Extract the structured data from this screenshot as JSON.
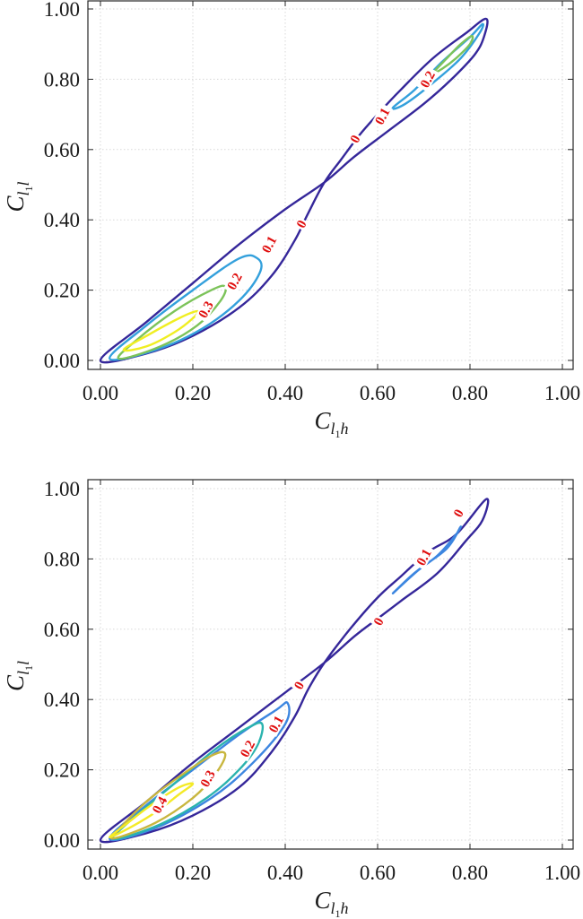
{
  "chart_data": [
    {
      "type": "contour",
      "title": "",
      "xlabel": "C_{l_1 h}",
      "ylabel": "C_{l_1 l}",
      "xlabel_parts": {
        "main": "C",
        "sub1": "l",
        "sub2": "1",
        "tail": "h"
      },
      "ylabel_parts": {
        "main": "C",
        "sub1": "l",
        "sub2": "1",
        "tail": "l"
      },
      "xlim": [
        0,
        1
      ],
      "ylim": [
        0,
        1
      ],
      "xticks": [
        "0.00",
        "0.20",
        "0.40",
        "0.60",
        "0.80",
        "1.00"
      ],
      "yticks": [
        "0.00",
        "0.20",
        "0.40",
        "0.60",
        "0.80",
        "1.00"
      ],
      "grid": true,
      "series": [
        {
          "name": "0",
          "level": 0,
          "color": "#35279a",
          "points": [
            [
              0,
              0
            ],
            [
              0.1,
              0.02
            ],
            [
              0.2,
              0.07
            ],
            [
              0.3,
              0.15
            ],
            [
              0.37,
              0.24
            ],
            [
              0.42,
              0.34
            ],
            [
              0.45,
              0.42
            ],
            [
              0.485,
              0.507
            ],
            [
              0.52,
              0.57
            ],
            [
              0.56,
              0.64
            ],
            [
              0.6,
              0.7
            ],
            [
              0.65,
              0.77
            ],
            [
              0.72,
              0.86
            ],
            [
              0.79,
              0.93
            ],
            [
              0.835,
              0.972
            ],
            [
              0.83,
              0.92
            ],
            [
              0.81,
              0.87
            ],
            [
              0.76,
              0.8
            ],
            [
              0.7,
              0.73
            ],
            [
              0.62,
              0.65
            ],
            [
              0.55,
              0.58
            ],
            [
              0.485,
              0.507
            ],
            [
              0.4,
              0.43
            ],
            [
              0.3,
              0.33
            ],
            [
              0.2,
              0.22
            ],
            [
              0.1,
              0.11
            ],
            [
              0,
              0
            ]
          ]
        },
        {
          "name": "0.1",
          "level": 0.1,
          "color": "#33a0dc",
          "loops": [
            [
              [
                0.02,
                0.005
              ],
              [
                0.12,
                0.03
              ],
              [
                0.22,
                0.09
              ],
              [
                0.3,
                0.17
              ],
              [
                0.345,
                0.25
              ],
              [
                0.34,
                0.29
              ],
              [
                0.3,
                0.29
              ],
              [
                0.2,
                0.2
              ],
              [
                0.1,
                0.1
              ],
              [
                0.02,
                0.005
              ]
            ],
            [
              [
                0.633,
                0.719
              ],
              [
                0.68,
                0.77
              ],
              [
                0.74,
                0.85
              ],
              [
                0.8,
                0.92
              ],
              [
                0.827,
                0.957
              ],
              [
                0.82,
                0.93
              ],
              [
                0.78,
                0.86
              ],
              [
                0.72,
                0.79
              ],
              [
                0.66,
                0.73
              ],
              [
                0.633,
                0.719
              ]
            ]
          ]
        },
        {
          "name": "0.2",
          "level": 0.2,
          "color": "#7cc35a",
          "loops": [
            [
              [
                0.04,
                0.005
              ],
              [
                0.13,
                0.04
              ],
              [
                0.21,
                0.1
              ],
              [
                0.26,
                0.17
              ],
              [
                0.27,
                0.21
              ],
              [
                0.24,
                0.2
              ],
              [
                0.16,
                0.14
              ],
              [
                0.08,
                0.06
              ],
              [
                0.04,
                0.005
              ]
            ],
            [
              [
                0.722,
                0.82
              ],
              [
                0.75,
                0.86
              ],
              [
                0.78,
                0.9
              ],
              [
                0.804,
                0.923
              ],
              [
                0.8,
                0.9
              ],
              [
                0.77,
                0.86
              ],
              [
                0.74,
                0.83
              ],
              [
                0.722,
                0.82
              ]
            ]
          ]
        },
        {
          "name": "0.3",
          "level": 0.3,
          "color": "#f0ee22",
          "loops": [
            [
              [
                0.05,
                0.03
              ],
              [
                0.1,
                0.04
              ],
              [
                0.16,
                0.08
              ],
              [
                0.2,
                0.12
              ],
              [
                0.21,
                0.14
              ],
              [
                0.17,
                0.12
              ],
              [
                0.1,
                0.07
              ],
              [
                0.05,
                0.03
              ]
            ]
          ]
        }
      ],
      "labels": [
        {
          "text": "0",
          "x": 0.435,
          "y": 0.388
        },
        {
          "text": "0",
          "x": 0.551,
          "y": 0.63
        },
        {
          "text": "0.1",
          "x": 0.365,
          "y": 0.33
        },
        {
          "text": "0.1",
          "x": 0.61,
          "y": 0.695
        },
        {
          "text": "0.2",
          "x": 0.29,
          "y": 0.225
        },
        {
          "text": "0.2",
          "x": 0.708,
          "y": 0.8
        },
        {
          "text": "0.3",
          "x": 0.228,
          "y": 0.145
        }
      ]
    },
    {
      "type": "contour",
      "title": "",
      "xlabel": "C_{l_1 h}",
      "ylabel": "C_{l_1 l}",
      "xlabel_parts": {
        "main": "C",
        "sub1": "l",
        "sub2": "1",
        "tail": "h"
      },
      "ylabel_parts": {
        "main": "C",
        "sub1": "l",
        "sub2": "1",
        "tail": "l"
      },
      "xlim": [
        0,
        1
      ],
      "ylim": [
        0,
        1
      ],
      "xticks": [
        "0.00",
        "0.20",
        "0.40",
        "0.60",
        "0.80",
        "1.00"
      ],
      "yticks": [
        "0.00",
        "0.20",
        "0.40",
        "0.60",
        "0.80",
        "1.00"
      ],
      "grid": true,
      "series": [
        {
          "name": "0",
          "level": 0,
          "color": "#35279a",
          "points": [
            [
              0,
              0
            ],
            [
              0.1,
              0.02
            ],
            [
              0.2,
              0.07
            ],
            [
              0.3,
              0.15
            ],
            [
              0.37,
              0.25
            ],
            [
              0.42,
              0.35
            ],
            [
              0.45,
              0.43
            ],
            [
              0.485,
              0.505
            ],
            [
              0.54,
              0.6
            ],
            [
              0.6,
              0.69
            ],
            [
              0.65,
              0.75
            ],
            [
              0.71,
              0.82
            ],
            [
              0.77,
              0.87
            ],
            [
              0.835,
              0.97
            ],
            [
              0.827,
              0.91
            ],
            [
              0.79,
              0.85
            ],
            [
              0.73,
              0.76
            ],
            [
              0.65,
              0.68
            ],
            [
              0.6,
              0.63
            ],
            [
              0.55,
              0.58
            ],
            [
              0.485,
              0.505
            ],
            [
              0.4,
              0.42
            ],
            [
              0.3,
              0.32
            ],
            [
              0.2,
              0.22
            ],
            [
              0.1,
              0.11
            ],
            [
              0,
              0
            ]
          ]
        },
        {
          "name": "0.1",
          "level": 0.1,
          "color": "#3c86e0",
          "loops": [
            [
              [
                0.02,
                0.003
              ],
              [
                0.12,
                0.035
              ],
              [
                0.24,
                0.12
              ],
              [
                0.33,
                0.22
              ],
              [
                0.4,
                0.33
              ],
              [
                0.405,
                0.39
              ],
              [
                0.38,
                0.37
              ],
              [
                0.3,
                0.3
              ],
              [
                0.2,
                0.2
              ],
              [
                0.1,
                0.1
              ],
              [
                0.02,
                0.003
              ]
            ],
            [
              [
                0.633,
                0.702
              ],
              [
                0.69,
                0.77
              ],
              [
                0.75,
                0.83
              ],
              [
                0.779,
                0.89
              ],
              [
                0.77,
                0.87
              ],
              [
                0.73,
                0.81
              ],
              [
                0.68,
                0.76
              ],
              [
                0.633,
                0.702
              ]
            ]
          ]
        },
        {
          "name": "0.2",
          "level": 0.2,
          "color": "#2ab3ae",
          "loops": [
            [
              [
                0.03,
                0.003
              ],
              [
                0.13,
                0.045
              ],
              [
                0.23,
                0.12
              ],
              [
                0.3,
                0.2
              ],
              [
                0.34,
                0.27
              ],
              [
                0.35,
                0.33
              ],
              [
                0.32,
                0.32
              ],
              [
                0.25,
                0.26
              ],
              [
                0.15,
                0.15
              ],
              [
                0.06,
                0.05
              ],
              [
                0.03,
                0.003
              ]
            ]
          ]
        },
        {
          "name": "0.3",
          "level": 0.3,
          "color": "#c8b63e",
          "loops": [
            [
              [
                0.03,
                0.005
              ],
              [
                0.12,
                0.05
              ],
              [
                0.2,
                0.12
              ],
              [
                0.25,
                0.19
              ],
              [
                0.27,
                0.245
              ],
              [
                0.24,
                0.24
              ],
              [
                0.17,
                0.18
              ],
              [
                0.1,
                0.11
              ],
              [
                0.04,
                0.03
              ],
              [
                0.03,
                0.005
              ]
            ]
          ]
        },
        {
          "name": "0.4",
          "level": 0.4,
          "color": "#f4ea26",
          "loops": [
            [
              [
                0.02,
                0.008
              ],
              [
                0.07,
                0.04
              ],
              [
                0.12,
                0.08
              ],
              [
                0.17,
                0.13
              ],
              [
                0.2,
                0.16
              ],
              [
                0.17,
                0.15
              ],
              [
                0.11,
                0.1
              ],
              [
                0.06,
                0.05
              ],
              [
                0.02,
                0.008
              ]
            ]
          ]
        }
      ],
      "labels": [
        {
          "text": "0",
          "x": 0.775,
          "y": 0.93
        },
        {
          "text": "0",
          "x": 0.602,
          "y": 0.622
        },
        {
          "text": "0",
          "x": 0.43,
          "y": 0.44
        },
        {
          "text": "0.1",
          "x": 0.7,
          "y": 0.805
        },
        {
          "text": "0.1",
          "x": 0.38,
          "y": 0.33
        },
        {
          "text": "0.2",
          "x": 0.318,
          "y": 0.26
        },
        {
          "text": "0.3",
          "x": 0.232,
          "y": 0.175
        },
        {
          "text": "0.4",
          "x": 0.128,
          "y": 0.1
        }
      ]
    }
  ]
}
